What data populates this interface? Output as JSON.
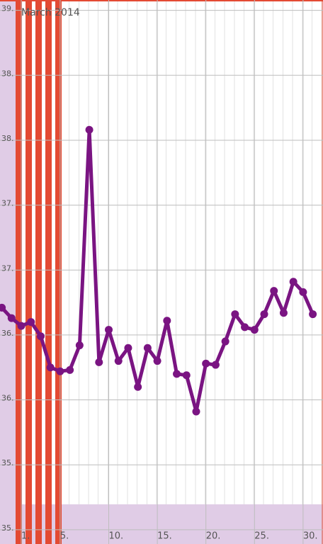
{
  "chart_data": {
    "type": "line",
    "title": "March 2014",
    "x": [
      -1,
      0,
      1,
      2,
      3,
      4,
      5,
      6,
      7,
      8,
      9,
      10,
      11,
      12,
      13,
      14,
      15,
      16,
      17,
      18,
      19,
      20,
      21,
      22,
      23,
      24,
      25,
      26,
      27,
      28,
      29,
      30,
      31
    ],
    "values": [
      36.71,
      36.63,
      36.57,
      36.6,
      36.49,
      36.25,
      36.22,
      36.23,
      36.42,
      38.08,
      36.29,
      36.54,
      36.3,
      36.4,
      36.1,
      36.4,
      36.3,
      36.61,
      36.2,
      36.19,
      35.91,
      36.28,
      36.27,
      36.45,
      36.66,
      36.56,
      36.54,
      36.66,
      36.84,
      36.67,
      36.91,
      36.83,
      36.66
    ],
    "color": "#7a1482",
    "xlim": [
      -1.19,
      32.05
    ],
    "xticks": [
      {
        "value": 1,
        "label": "1."
      },
      {
        "value": 5,
        "label": "5."
      },
      {
        "value": 10,
        "label": "10."
      },
      {
        "value": 15,
        "label": "15."
      },
      {
        "value": 20,
        "label": "20."
      },
      {
        "value": 25,
        "label": "25."
      },
      {
        "value": 30,
        "label": "30."
      }
    ],
    "ylim": [
      34.89,
      39.08
    ],
    "yticks": [
      {
        "value": 35,
        "label": "35."
      },
      {
        "value": 35.5,
        "label": "35."
      },
      {
        "value": 36,
        "label": "36."
      },
      {
        "value": 36.5,
        "label": "36."
      },
      {
        "value": 37,
        "label": "37."
      },
      {
        "value": 37.5,
        "label": "37."
      },
      {
        "value": 38,
        "label": "38."
      },
      {
        "value": 38.5,
        "label": "38."
      },
      {
        "value": 39,
        "label": "39."
      }
    ],
    "grid": true
  }
}
